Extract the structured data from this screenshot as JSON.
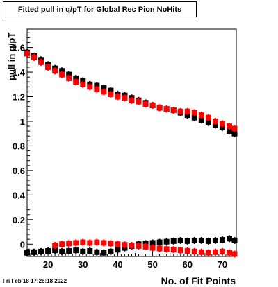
{
  "title": "Fitted pull in q/pT for Global Rec Pion NoHits",
  "timestamp": "Fri Feb 18 17:26:18 2022",
  "chart_data": {
    "type": "scatter",
    "title": "Fitted pull in q/pT for Global Rec Pion NoHits",
    "xlabel": "No. of Fit Points",
    "ylabel": "pull in q/pT",
    "xlim": [
      14,
      74
    ],
    "ylim": [
      -0.1,
      1.75
    ],
    "xticks": [
      20,
      30,
      40,
      50,
      60,
      70
    ],
    "yticks": [
      0,
      0.2,
      0.4,
      0.6,
      0.8,
      1,
      1.2,
      1.4,
      1.6
    ],
    "ytick_labels": [
      "0",
      "0.2",
      "0.4",
      "0.6",
      "0.8",
      "1",
      "1.2",
      "1.4",
      "1.6"
    ],
    "grid": false,
    "series": [
      {
        "color": "#000000",
        "points": [
          [
            14,
            1.56
          ],
          [
            16,
            1.53
          ],
          [
            18,
            1.5
          ],
          [
            20,
            1.46
          ],
          [
            22,
            1.43
          ],
          [
            24,
            1.41
          ],
          [
            26,
            1.38
          ],
          [
            28,
            1.35
          ],
          [
            30,
            1.33
          ],
          [
            32,
            1.3
          ],
          [
            34,
            1.29
          ],
          [
            36,
            1.27
          ],
          [
            38,
            1.25
          ],
          [
            40,
            1.22
          ],
          [
            42,
            1.21
          ],
          [
            44,
            1.19
          ],
          [
            46,
            1.17
          ],
          [
            48,
            1.15
          ],
          [
            50,
            1.13
          ],
          [
            52,
            1.11
          ],
          [
            54,
            1.1
          ],
          [
            56,
            1.09
          ],
          [
            58,
            1.07
          ],
          [
            60,
            1.05
          ],
          [
            62,
            1.03
          ],
          [
            64,
            1.01
          ],
          [
            66,
            0.99
          ],
          [
            68,
            0.97
          ],
          [
            70,
            0.95
          ],
          [
            72,
            0.92
          ],
          [
            73.5,
            0.9
          ],
          [
            14,
            -0.07
          ],
          [
            16,
            -0.065
          ],
          [
            18,
            -0.06
          ],
          [
            20,
            -0.055
          ],
          [
            22,
            -0.05
          ],
          [
            24,
            -0.06
          ],
          [
            26,
            -0.055
          ],
          [
            28,
            -0.05
          ],
          [
            30,
            -0.06
          ],
          [
            32,
            -0.055
          ],
          [
            34,
            -0.065
          ],
          [
            36,
            -0.07
          ],
          [
            38,
            -0.06
          ],
          [
            40,
            -0.045
          ],
          [
            42,
            -0.03
          ],
          [
            44,
            -0.015
          ],
          [
            46,
            0.0
          ],
          [
            48,
            0.005
          ],
          [
            50,
            0.01
          ],
          [
            52,
            0.015
          ],
          [
            54,
            0.02
          ],
          [
            56,
            0.025
          ],
          [
            58,
            0.03
          ],
          [
            60,
            0.025
          ],
          [
            62,
            0.03
          ],
          [
            64,
            0.03
          ],
          [
            66,
            0.025
          ],
          [
            68,
            0.03
          ],
          [
            70,
            0.035
          ],
          [
            72,
            0.045
          ],
          [
            73.5,
            0.03
          ]
        ]
      },
      {
        "color": "#ff0000",
        "points": [
          [
            14,
            1.55
          ],
          [
            16,
            1.52
          ],
          [
            18,
            1.48
          ],
          [
            20,
            1.44
          ],
          [
            22,
            1.41
          ],
          [
            24,
            1.38
          ],
          [
            26,
            1.35
          ],
          [
            28,
            1.32
          ],
          [
            30,
            1.3
          ],
          [
            32,
            1.28
          ],
          [
            34,
            1.26
          ],
          [
            36,
            1.24
          ],
          [
            38,
            1.22
          ],
          [
            40,
            1.2
          ],
          [
            42,
            1.19
          ],
          [
            44,
            1.17
          ],
          [
            46,
            1.16
          ],
          [
            48,
            1.14
          ],
          [
            50,
            1.13
          ],
          [
            52,
            1.11
          ],
          [
            54,
            1.1
          ],
          [
            56,
            1.09
          ],
          [
            58,
            1.08
          ],
          [
            60,
            1.08
          ],
          [
            62,
            1.07
          ],
          [
            64,
            1.05
          ],
          [
            66,
            1.03
          ],
          [
            68,
            1.0
          ],
          [
            70,
            0.98
          ],
          [
            72,
            0.96
          ],
          [
            73.5,
            0.94
          ],
          [
            22,
            -0.01
          ],
          [
            24,
            0.0
          ],
          [
            26,
            0.005
          ],
          [
            28,
            0.01
          ],
          [
            30,
            0.015
          ],
          [
            32,
            0.01
          ],
          [
            34,
            0.015
          ],
          [
            36,
            0.01
          ],
          [
            38,
            0.005
          ],
          [
            40,
            0.0
          ],
          [
            42,
            -0.005
          ],
          [
            44,
            -0.01
          ],
          [
            46,
            -0.015
          ],
          [
            48,
            -0.02
          ],
          [
            50,
            -0.03
          ],
          [
            52,
            -0.035
          ],
          [
            54,
            -0.04
          ],
          [
            56,
            -0.045
          ],
          [
            58,
            -0.05
          ],
          [
            60,
            -0.055
          ],
          [
            62,
            -0.06
          ],
          [
            64,
            -0.065
          ],
          [
            66,
            -0.07
          ],
          [
            68,
            -0.065
          ],
          [
            70,
            -0.06
          ],
          [
            72,
            -0.07
          ],
          [
            73.5,
            -0.08
          ]
        ]
      }
    ]
  }
}
